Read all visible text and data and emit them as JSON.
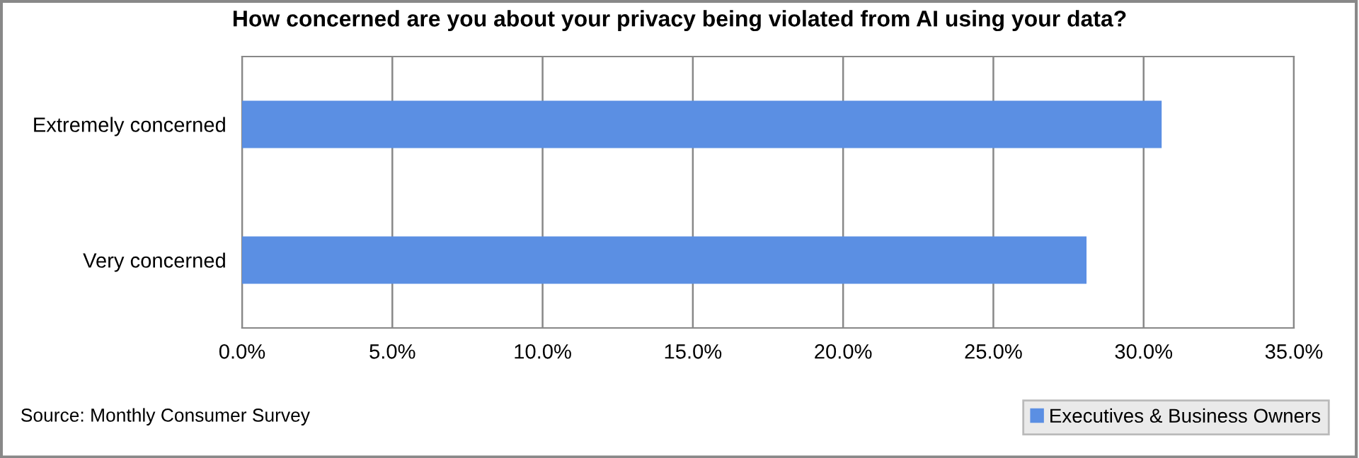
{
  "chart_data": {
    "type": "bar",
    "orientation": "horizontal",
    "title": "How concerned are you about your privacy being violated from AI using your data?",
    "categories": [
      "Extremely concerned",
      "Very concerned"
    ],
    "series": [
      {
        "name": "Executives & Business Owners",
        "color": "#5b8fe3",
        "values": [
          30.6,
          28.1
        ]
      }
    ],
    "xlim": [
      0,
      35
    ],
    "xticks": [
      {
        "value": 0,
        "label": "0.0%"
      },
      {
        "value": 5,
        "label": "5.0%"
      },
      {
        "value": 10,
        "label": "10.0%"
      },
      {
        "value": 15,
        "label": "15.0%"
      },
      {
        "value": 20,
        "label": "20.0%"
      },
      {
        "value": 25,
        "label": "25.0%"
      },
      {
        "value": 30,
        "label": "30.0%"
      },
      {
        "value": 35,
        "label": "35.0%"
      }
    ],
    "grid": "x",
    "legend": "bottom right",
    "annotations": [
      "Source: Monthly Consumer Survey"
    ]
  }
}
